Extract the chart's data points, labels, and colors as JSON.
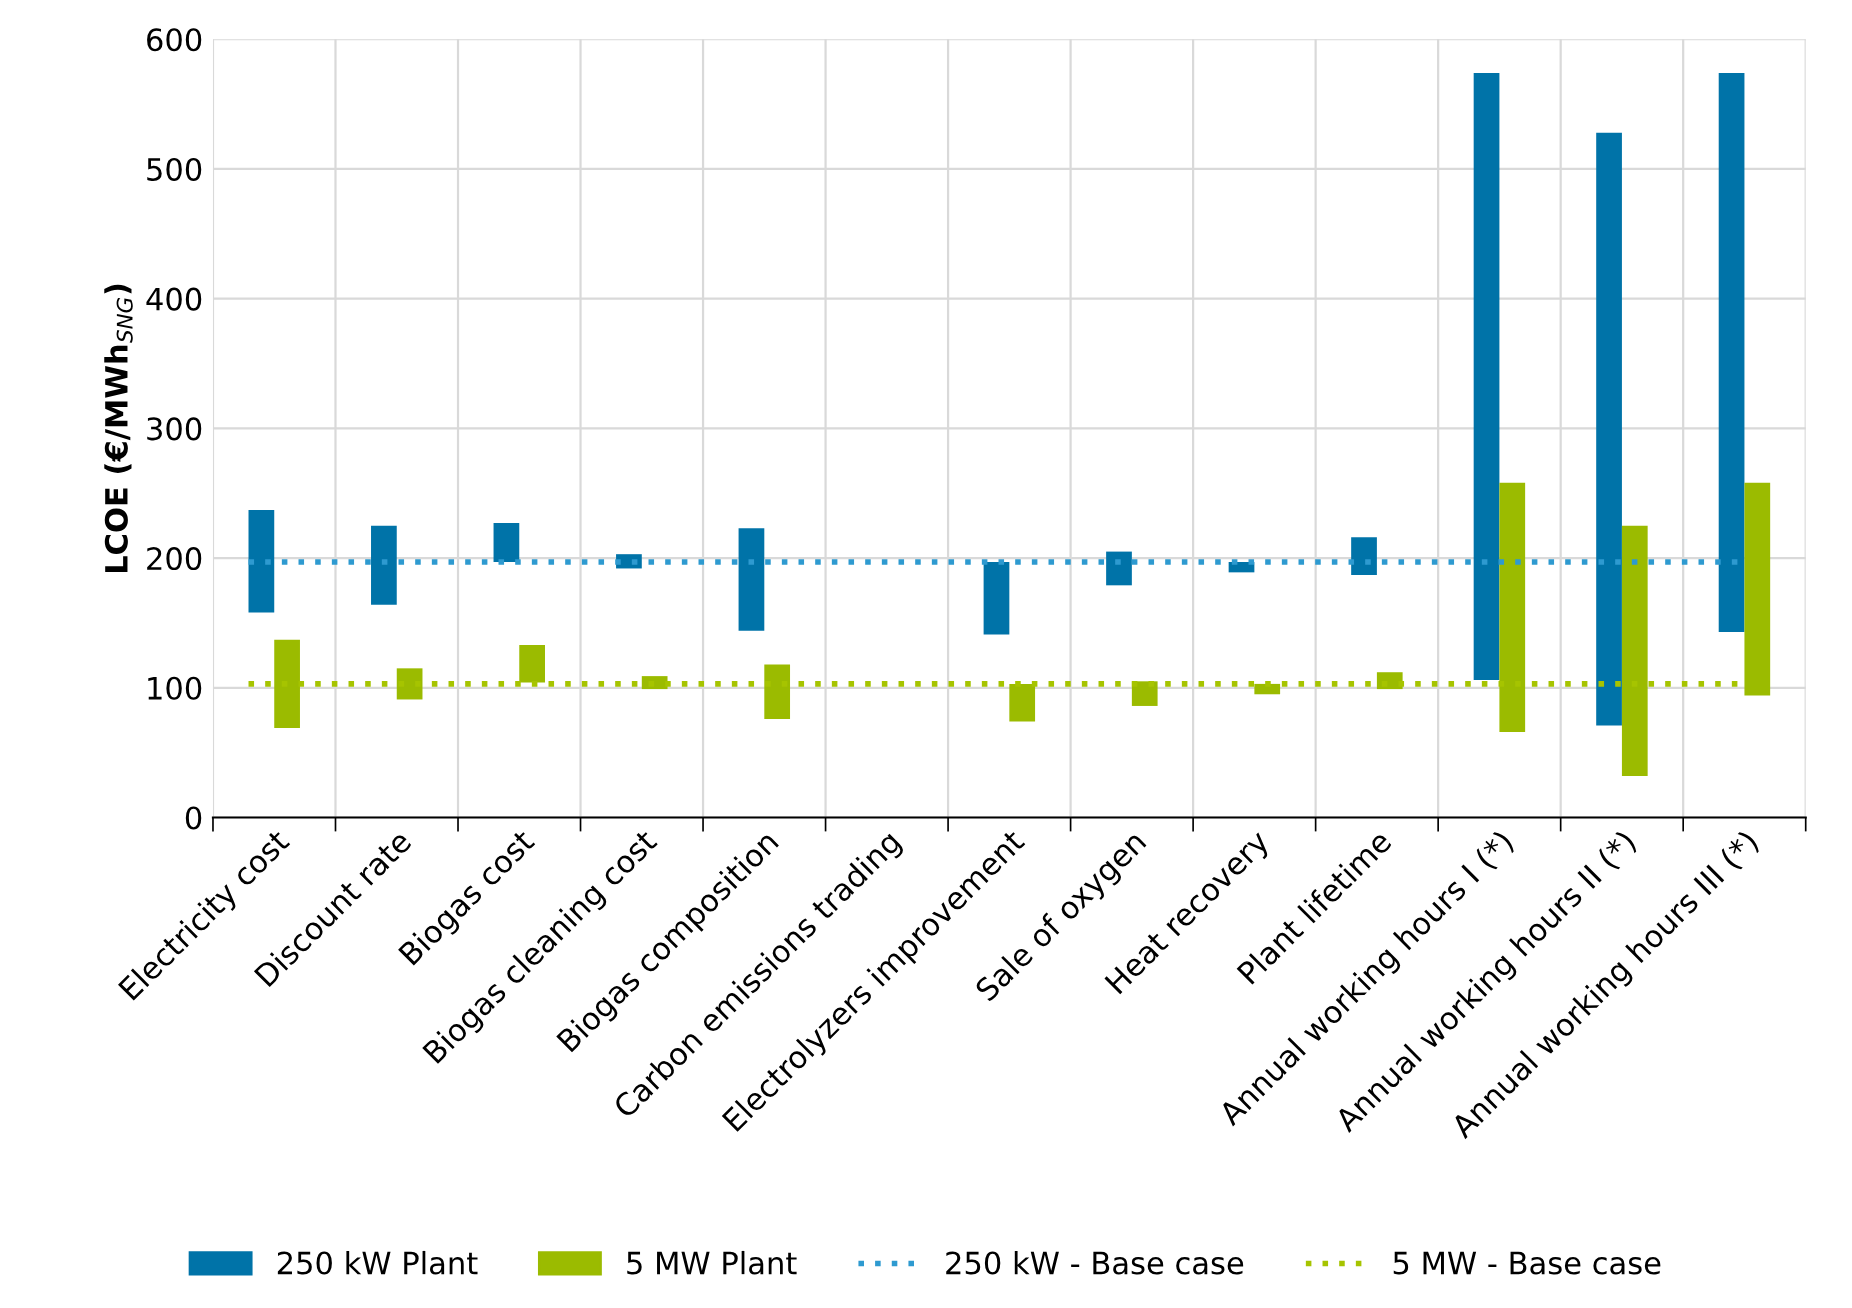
{
  "chart_data": {
    "type": "bar",
    "ylabel": "LCOE (€/MWh$_{SNG}$)",
    "categories": [
      "Electricity cost",
      "Discount rate",
      "Biogas cost",
      "Biogas cleaning cost",
      "Biogas composition",
      "Carbon emissions trading",
      "Electrolyzers improvement",
      "Sale of oxygen",
      "Heat recovery",
      "Plant lifetime",
      "Annual working hours I (*)",
      "Annual working hours II (*)",
      "Annual working hours III (*)"
    ],
    "series": [
      {
        "name": "250 kW Plant",
        "color": "#0073a8",
        "base": [
          158,
          164,
          197,
          192,
          144,
          null,
          141,
          179,
          189,
          187,
          106,
          71,
          143
        ],
        "values": [
          79,
          61,
          30,
          11,
          79,
          null,
          56,
          26,
          8,
          29,
          468,
          457,
          431
        ]
      },
      {
        "name": "5 MW Plant",
        "color": "#9bbb00",
        "base": [
          69,
          91,
          104,
          99,
          76,
          null,
          74,
          86,
          95,
          99,
          66,
          32,
          94
        ],
        "values": [
          68,
          24,
          29,
          10,
          42,
          null,
          29,
          19,
          8,
          13,
          192,
          193,
          164
        ]
      }
    ],
    "ref_lines": [
      {
        "axis": "y",
        "value": 197,
        "label": "250 kW - Base case",
        "color": "#2e9ad0",
        "line_style": "dotted"
      },
      {
        "axis": "y",
        "value": 103,
        "label": "5 MW - Base case",
        "color": "#a6c400",
        "line_style": "dotted"
      }
    ],
    "ylim": [
      0,
      600
    ],
    "yticks": [
      0,
      100,
      200,
      300,
      400,
      500,
      600
    ],
    "grid": true,
    "legend": "bottom"
  }
}
